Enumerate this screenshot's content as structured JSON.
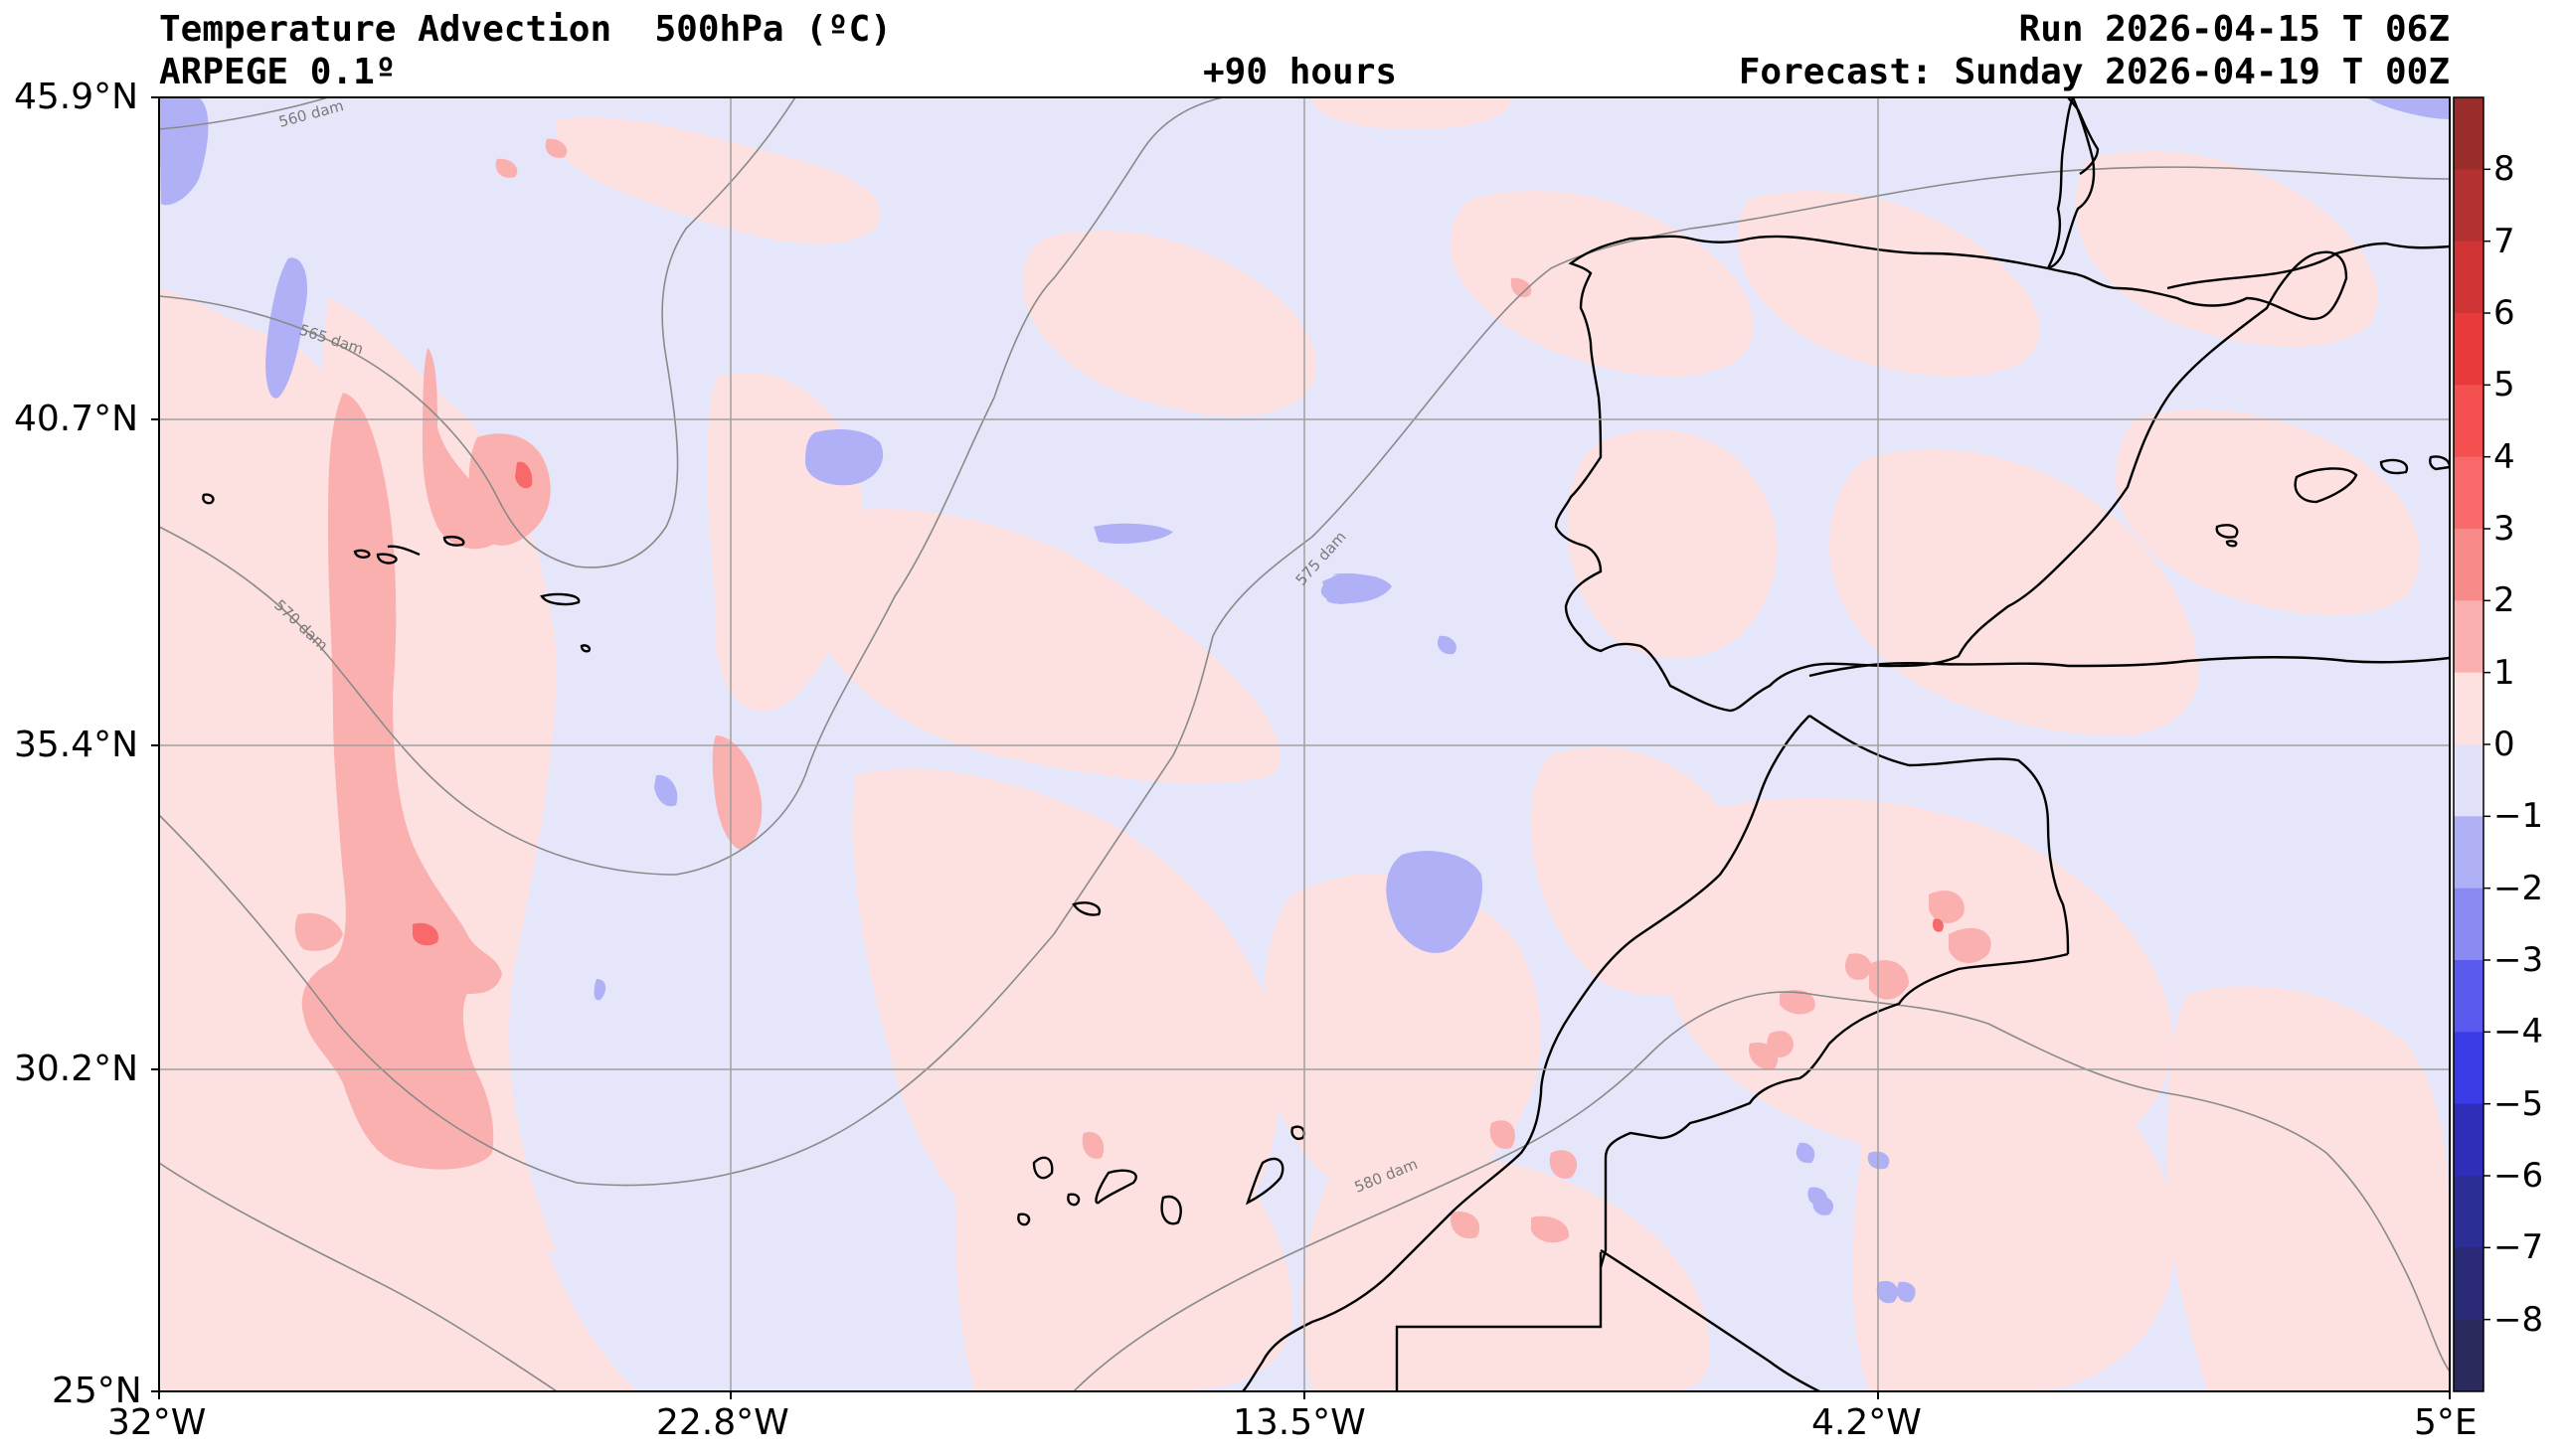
{
  "header": {
    "title": "Temperature Advection  500hPa (ºC)",
    "model": "ARPEGE 0.1º",
    "lead": "+90 hours",
    "run": "Run 2026-04-15 T 06Z",
    "forecast": "Forecast: Sunday 2026-04-19 T 00Z"
  },
  "axes": {
    "lat_labels": [
      "45.9°N",
      "40.7°N",
      "35.4°N",
      "30.2°N",
      "25°N"
    ],
    "lon_labels": [
      "32°W",
      "22.8°W",
      "13.5°W",
      "4.2°W",
      "5°E"
    ],
    "lat_values": [
      45.9,
      40.7,
      35.4,
      30.2,
      25
    ],
    "lon_values": [
      -32,
      -22.8,
      -13.5,
      -4.2,
      5
    ]
  },
  "colorbar": {
    "ticks": [
      "8",
      "7",
      "6",
      "5",
      "4",
      "3",
      "2",
      "1",
      "0",
      "−1",
      "−2",
      "−3",
      "−4",
      "−5",
      "−6",
      "−7",
      "−8"
    ],
    "colors": [
      "#9b2c2c",
      "#b33131",
      "#d03434",
      "#e83a3a",
      "#f45050",
      "#f86a6a",
      "#f98a8a",
      "#fbb0b0",
      "#fde0e0",
      "#e2e2fc",
      "#b0b0f6",
      "#8a8af2",
      "#5a5aee",
      "#3a3ae6",
      "#2e2eb8",
      "#2d2d96",
      "#2a2a76",
      "#2a2a5c"
    ]
  },
  "contours": [
    {
      "label": "560 dam"
    },
    {
      "label": "565 dam"
    },
    {
      "label": "570 dam"
    },
    {
      "label": "575 dam"
    },
    {
      "label": "580 dam"
    }
  ],
  "colors": {
    "background_field": "#e6e6fb",
    "warm_light": "#fde0e0",
    "warm_mid": "#fbb0b0",
    "warm_strong": "#f86a6a",
    "cold_light": "#b0b0f6",
    "contour_line": "#8a8a8a",
    "coastline": "#000000"
  }
}
